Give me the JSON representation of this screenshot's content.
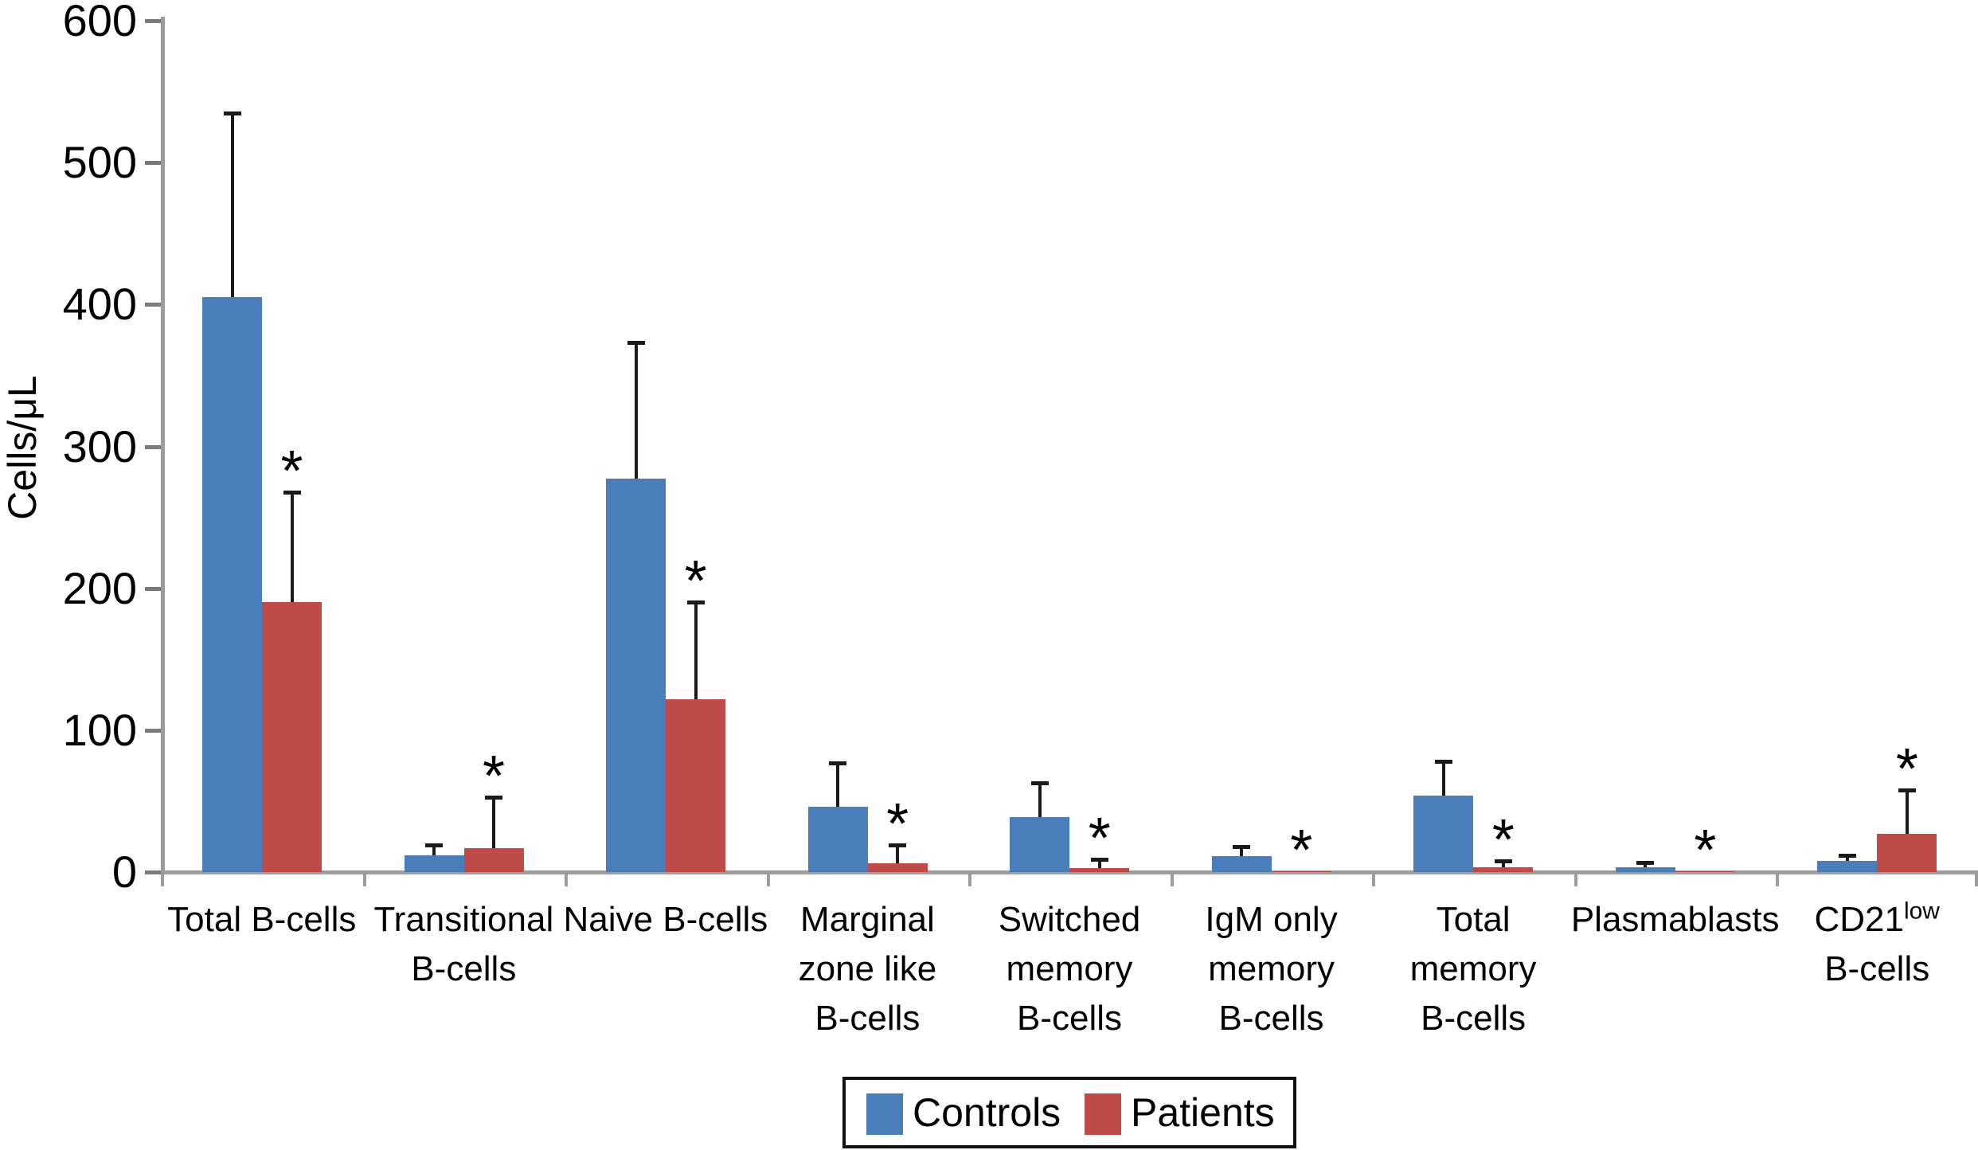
{
  "background_color": "#FFFFFF",
  "text_color": "#000000",
  "axis_color": "#9C9C9C",
  "error_bar_color": "#1A1A1A",
  "chart_data": {
    "type": "bar",
    "title": "",
    "xlabel": "",
    "ylabel": "Cells/μL",
    "ylim": [
      0,
      600
    ],
    "yticks": [
      0,
      100,
      200,
      300,
      400,
      500,
      600
    ],
    "grid": "off",
    "legend_position": "bottom",
    "error_bars": "upper-only",
    "categories": [
      {
        "lines": [
          {
            "t": "Total B-cells"
          }
        ]
      },
      {
        "lines": [
          {
            "t": "Transitional"
          },
          {
            "t": "B-cells"
          }
        ]
      },
      {
        "lines": [
          {
            "t": "Naive B-cells"
          }
        ]
      },
      {
        "lines": [
          {
            "t": "Marginal"
          },
          {
            "t": "zone like"
          },
          {
            "t": "B-cells"
          }
        ]
      },
      {
        "lines": [
          {
            "t": "Switched"
          },
          {
            "t": "memory"
          },
          {
            "t": "B-cells"
          }
        ]
      },
      {
        "lines": [
          {
            "t": "IgM only"
          },
          {
            "t": "memory"
          },
          {
            "t": "B-cells"
          }
        ]
      },
      {
        "lines": [
          {
            "t": "Total"
          },
          {
            "t": "memory"
          },
          {
            "t": "B-cells"
          }
        ]
      },
      {
        "lines": [
          {
            "t": "Plasmablasts"
          }
        ]
      },
      {
        "lines": [
          {
            "t": "CD21",
            "sup": "low"
          },
          {
            "t": "B-cells"
          }
        ]
      }
    ],
    "series": [
      {
        "name": "Controls",
        "color": "#4A7EBB",
        "values": [
          405,
          12,
          277,
          46,
          39,
          11,
          54,
          3.5,
          8
        ],
        "errors_up": [
          130,
          7,
          96,
          31,
          24,
          7,
          24,
          3.5,
          4
        ]
      },
      {
        "name": "Patients",
        "color": "#BE4B48",
        "values": [
          190,
          17,
          122,
          6,
          3,
          0.5,
          3.5,
          0.3,
          27
        ],
        "errors_up": [
          78,
          36,
          68,
          13,
          6,
          0,
          4.5,
          0,
          31
        ]
      }
    ],
    "significance_markers": [
      "*",
      "*",
      "*",
      "*",
      "*",
      "*",
      "*",
      "*",
      "*"
    ],
    "significance_marker_series": "Patients"
  }
}
